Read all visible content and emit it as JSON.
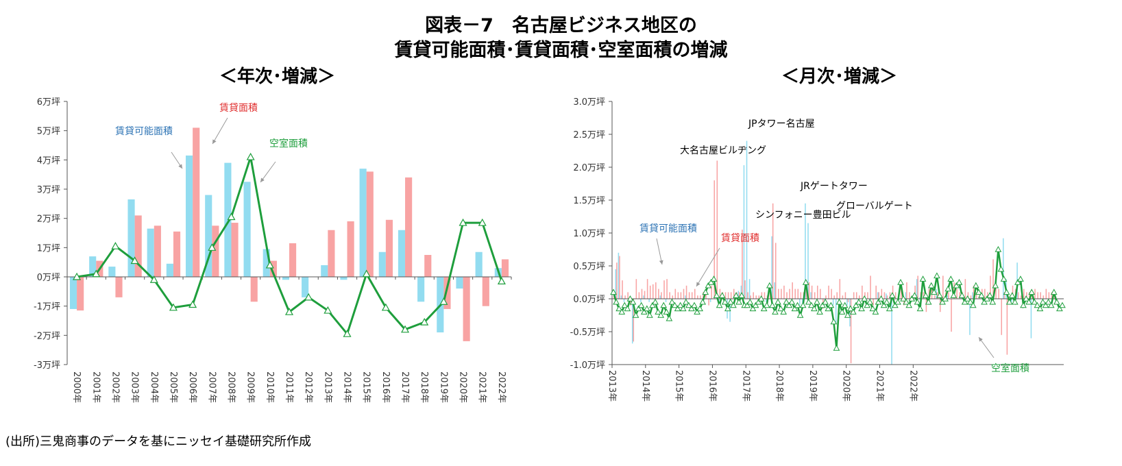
{
  "title_line1": "図表－7　名古屋ビジネス地区の",
  "title_line2": "賃貸可能面積･賃貸面積･空室面積の増減",
  "subtitle_left": "＜年次･増減＞",
  "subtitle_right": "＜月次･増減＞",
  "source": "(出所)三鬼商事のデータを基にニッセイ基礎研究所作成",
  "colors": {
    "available": "#92DCF0",
    "leased": "#F8A3A3",
    "vacant": "#1E9E3C",
    "available_label": "#2E74B5",
    "leased_label": "#E03030",
    "vacant_label": "#1E9E3C"
  },
  "chart_data": [
    {
      "type": "bar",
      "title": "＜年次･増減＞",
      "categories": [
        "2000年",
        "2001年",
        "2002年",
        "2003年",
        "2004年",
        "2005年",
        "2006年",
        "2007年",
        "2008年",
        "2009年",
        "2010年",
        "2011年",
        "2012年",
        "2013年",
        "2014年",
        "2015年",
        "2016年",
        "2017年",
        "2018年",
        "2019年",
        "2020年",
        "2021年",
        "2022年"
      ],
      "unit": "万坪",
      "ylim": [
        -3,
        6
      ],
      "yticks": [
        "-3万坪",
        "-2万坪",
        "-1万坪",
        "0万坪",
        "1万坪",
        "2万坪",
        "3万坪",
        "4万坪",
        "5万坪",
        "6万坪"
      ],
      "series": [
        {
          "name": "賃貸可能面積",
          "kind": "bar",
          "values": [
            -1.1,
            0.7,
            0.35,
            2.65,
            1.65,
            0.45,
            4.15,
            2.8,
            3.9,
            3.25,
            0.95,
            -0.1,
            -0.7,
            0.4,
            -0.1,
            3.7,
            0.85,
            1.6,
            -0.85,
            -1.9,
            -0.4,
            0.85,
            0.3
          ]
        },
        {
          "name": "賃貸面積",
          "kind": "bar",
          "values": [
            -1.15,
            0.55,
            -0.7,
            2.1,
            1.75,
            1.55,
            5.1,
            1.75,
            1.85,
            -0.85,
            0.55,
            1.15,
            0,
            1.6,
            1.9,
            3.6,
            1.95,
            3.4,
            0.75,
            -1.1,
            -2.2,
            -1.0,
            0.6
          ]
        },
        {
          "name": "空室面積",
          "kind": "line",
          "values": [
            0.0,
            0.1,
            1.05,
            0.55,
            -0.1,
            -1.05,
            -0.95,
            1.0,
            2.05,
            4.1,
            0.4,
            -1.2,
            -0.7,
            -1.15,
            -1.95,
            0.1,
            -1.05,
            -1.8,
            -1.55,
            -0.85,
            1.85,
            1.85,
            -0.15
          ]
        }
      ],
      "annotations": [
        "賃貸面積",
        "賃貸可能面積",
        "空室面積"
      ]
    },
    {
      "type": "bar",
      "title": "＜月次･増減＞",
      "x_start": "2013-01",
      "x_ticks": [
        "2013年",
        "2014年",
        "2015年",
        "2016年",
        "2017年",
        "2018年",
        "2019年",
        "2020年",
        "2021年",
        "2022年"
      ],
      "unit": "万坪",
      "ylim": [
        -1.0,
        3.0
      ],
      "yticks": [
        "-1.0万坪",
        "-0.5万坪",
        "0.0万坪",
        "0.5万坪",
        "1.0万坪",
        "1.5万坪",
        "2.0万坪",
        "2.5万坪",
        "3.0万坪"
      ],
      "series": [
        {
          "name": "賃貸可能面積",
          "kind": "bar",
          "values": [
            0.0,
            0.45,
            0.7,
            0.05,
            -0.05,
            0,
            0,
            -0.68,
            0,
            0,
            -0.05,
            0.05,
            0,
            -0.05,
            0,
            0,
            0,
            0.05,
            0,
            -0.05,
            0,
            0,
            0,
            0,
            0,
            0,
            0.05,
            0,
            0,
            0,
            0,
            0,
            0,
            0,
            0,
            -0.05,
            0,
            0,
            -0.05,
            0,
            0,
            -0.3,
            -0.35,
            0,
            0.05,
            0.12,
            0.2,
            2.03,
            2.4,
            0.3,
            0,
            0,
            0,
            0,
            0,
            -0.05,
            0,
            0.95,
            0.25,
            0,
            0,
            0,
            0,
            0,
            0,
            0,
            0,
            -0.1,
            -0.15,
            1.45,
            1.15,
            0.1,
            0,
            0,
            0,
            0,
            -0.05,
            0,
            0,
            -0.1,
            -0.38,
            -0.15,
            0,
            0,
            -0.1,
            -0.42,
            0,
            0,
            -0.05,
            0,
            0,
            0,
            0,
            0,
            0,
            0.1,
            0,
            0,
            0.08,
            0,
            -1.0,
            0,
            0,
            0,
            0,
            0.1,
            0,
            0,
            0,
            0.3,
            0.02,
            0,
            0,
            0,
            0,
            0,
            0.15,
            0,
            0,
            0,
            0.05,
            0,
            0,
            0,
            0,
            0.08,
            0,
            0,
            -0.55,
            0.1,
            0,
            0,
            0,
            0,
            0,
            0,
            0,
            0,
            0,
            0,
            0.92,
            0.3,
            0,
            -0.05,
            0,
            0.55,
            0,
            0,
            0,
            0,
            -0.6,
            0,
            0,
            0,
            0,
            0,
            0,
            0,
            0,
            0,
            0,
            0
          ]
        },
        {
          "name": "賃貸面積",
          "kind": "bar",
          "values": [
            0.1,
            0.55,
            0.65,
            0.28,
            0.05,
            0.1,
            -0.1,
            -0.65,
            0.3,
            0.1,
            0.15,
            0.12,
            0.3,
            0.2,
            0.22,
            0.25,
            0.15,
            0.1,
            0.28,
            0.3,
            0.1,
            0.05,
            0.15,
            0.1,
            0.1,
            0.15,
            0.2,
            0.1,
            0.1,
            0.15,
            0.05,
            0.05,
            0.1,
            0.1,
            -0.1,
            0.2,
            1.8,
            2.1,
            0.15,
            0.1,
            0.1,
            0.1,
            0.1,
            0.15,
            0.1,
            0.1,
            1.05,
            0.28,
            0.1,
            0.05,
            0.1,
            0.05,
            0.05,
            0.1,
            0.1,
            0.05,
            0.1,
            1.45,
            0.85,
            0.15,
            0.15,
            0.2,
            0.1,
            0.15,
            0.25,
            0.15,
            0.15,
            0.1,
            0.1,
            0.2,
            0.25,
            0.2,
            0.1,
            0.2,
            0.15,
            -0.15,
            0.05,
            0.2,
            0.15,
            0.05,
            0.1,
            0.3,
            0.05,
            0.1,
            -0.05,
            -0.98,
            0.1,
            0.1,
            0.05,
            0.2,
            0.1,
            0.1,
            0.35,
            -0.1,
            0.2,
            0.1,
            0.15,
            0.1,
            0.05,
            0.1,
            0.2,
            0.1,
            0.05,
            0.2,
            -0.1,
            0.25,
            0.1,
            0.05,
            0.2,
            0.35,
            0.1,
            0.1,
            -0.2,
            0.15,
            0.2,
            0.05,
            0.1,
            -0.2,
            0.35,
            0.1,
            0.1,
            -0.5,
            0.25,
            0.15,
            0.1,
            0.1,
            0.3,
            0.1,
            0.05,
            0.2,
            0.1,
            0.05,
            0.15,
            0.15,
            0.1,
            0.35,
            0.6,
            0.2,
            0.15,
            -0.55,
            0.1,
            -0.85,
            0.05,
            0.2,
            0.15,
            0.1,
            0.05,
            0.15,
            0.1,
            0.1,
            0.1,
            0.15,
            0.1,
            0.1,
            0.05,
            0.15,
            0.1,
            0.1,
            0.1
          ]
        },
        {
          "name": "空室面積",
          "kind": "line",
          "values": [
            0.1,
            -0.05,
            -0.15,
            -0.2,
            -0.1,
            -0.15,
            0.0,
            -0.05,
            -0.25,
            -0.15,
            -0.1,
            -0.2,
            -0.15,
            -0.25,
            -0.1,
            -0.05,
            -0.2,
            -0.25,
            -0.1,
            -0.2,
            -0.3,
            -0.05,
            -0.1,
            -0.15,
            -0.1,
            -0.15,
            -0.05,
            -0.1,
            -0.15,
            -0.1,
            -0.2,
            -0.15,
            -0.05,
            0.1,
            0.2,
            0.25,
            0.3,
            0.05,
            -0.1,
            0.05,
            -0.05,
            -0.15,
            -0.05,
            -0.1,
            0.05,
            -0.05,
            0.05,
            -0.1,
            -0.1,
            -0.05,
            -0.15,
            -0.1,
            -0.05,
            0.0,
            -0.15,
            -0.1,
            0.2,
            -0.1,
            -0.2,
            -0.05,
            -0.15,
            -0.2,
            -0.05,
            -0.1,
            -0.05,
            -0.15,
            -0.1,
            -0.25,
            -0.1,
            0.25,
            -0.05,
            -0.1,
            -0.15,
            -0.05,
            -0.2,
            -0.1,
            -0.05,
            -0.15,
            -0.1,
            -0.35,
            -0.75,
            -0.05,
            -0.2,
            -0.1,
            -0.25,
            -0.15,
            -0.2,
            -0.1,
            -0.05,
            -0.15,
            0.0,
            -0.1,
            -0.05,
            -0.15,
            -0.2,
            -0.05,
            0.0,
            -0.1,
            -0.05,
            -0.15,
            0.05,
            -0.1,
            -0.05,
            0.25,
            0.0,
            -0.05,
            -0.1,
            0.0,
            0.05,
            -0.05,
            -0.15,
            0.3,
            0.05,
            -0.05,
            0.2,
            0.1,
            0.35,
            0.05,
            -0.05,
            0.0,
            0.15,
            0.3,
            0.05,
            0.2,
            0.25,
            0.05,
            -0.05,
            0.0,
            -0.05,
            -0.1,
            0.2,
            0.1,
            0.05,
            -0.05,
            0.0,
            0.05,
            -0.05,
            0.2,
            0.75,
            0.45,
            0.3,
            0.1,
            -0.05,
            0.05,
            -0.05,
            0.25,
            0.3,
            -0.1,
            0.0,
            -0.05,
            0.1,
            -0.05,
            -0.1,
            -0.15,
            -0.05,
            -0.1,
            -0.05,
            -0.1,
            0.1,
            -0.05,
            -0.15,
            -0.1
          ]
        }
      ],
      "annotations": [
        "JPタワー名古屋",
        "大名古屋ビルヂング",
        "JRゲートタワー",
        "シンフォニー豊田ビル",
        "グローバルゲート",
        "賃貸可能面積",
        "賃貸面積",
        "空室面積"
      ]
    }
  ]
}
